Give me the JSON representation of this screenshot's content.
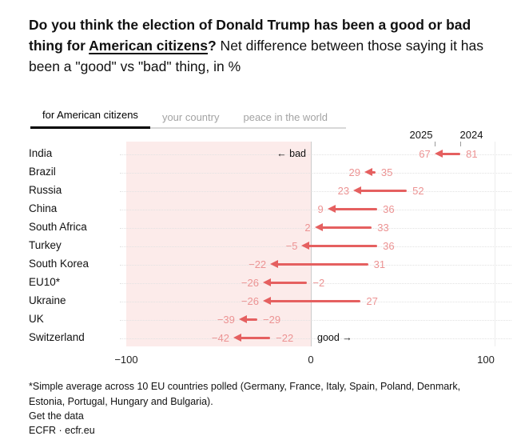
{
  "title": {
    "lead_bold": "Do you think the election of Donald Trump has been a good or bad thing for ",
    "underlined_bold": "American citizens",
    "question_mark": "?",
    "rest": " Net difference between those saying it has been a \"good\" vs \"bad\" thing, in %"
  },
  "tabs": [
    {
      "label": "for American citizens",
      "active": true
    },
    {
      "label": "your country",
      "active": false
    },
    {
      "label": "peace in the world",
      "active": false
    }
  ],
  "chart_data": {
    "type": "arrow",
    "subtype": "dumbbell-change-chart",
    "description": "Arrows point from 2024 value to 2025 value of net % saying Trump's election was a good vs bad thing for American citizens",
    "categories": [
      "India",
      "Brazil",
      "Russia",
      "China",
      "South Africa",
      "Turkey",
      "South Korea",
      "EU10*",
      "Ukraine",
      "UK",
      "Switzerland"
    ],
    "series": [
      {
        "name": "2025",
        "values": [
          67,
          29,
          23,
          9,
          2,
          -5,
          -22,
          -26,
          -26,
          -39,
          -42
        ]
      },
      {
        "name": "2024",
        "values": [
          81,
          35,
          52,
          36,
          33,
          36,
          31,
          -2,
          27,
          -29,
          -22
        ]
      }
    ],
    "xlim": [
      -100,
      100
    ],
    "x_ticks": [
      "−100",
      "0",
      "100"
    ],
    "annotations": {
      "bad_side": "← bad",
      "good_side": "good →"
    },
    "legend_position": "top-right-column-headers",
    "grid": "horizontal-dotted",
    "colors": {
      "arrow": "#e56060",
      "value_label": "#ec9393",
      "bad_region_bg": "#fcebea",
      "zero_line": "#cbcbcb",
      "gridline": "#e2e2e2"
    }
  },
  "footnote": "*Simple average across 10 EU countries polled (Germany, France, Italy, Spain, Poland, Denmark, Estonia, Portugal, Hungary and Bulgaria).",
  "footer": {
    "get_data": "Get the data",
    "source": "ECFR · ecfr.eu"
  }
}
